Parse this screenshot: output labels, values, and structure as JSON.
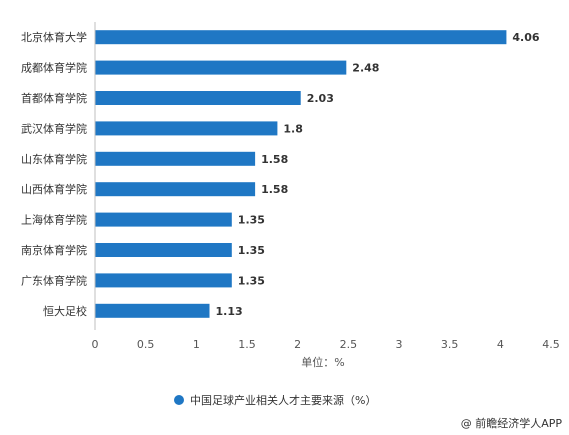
{
  "chart_data": {
    "type": "bar",
    "orientation": "horizontal",
    "categories": [
      "北京体育大学",
      "成都体育学院",
      "首都体育学院",
      "武汉体育学院",
      "山东体育学院",
      "山西体育学院",
      "上海体育学院",
      "南京体育学院",
      "广东体育学院",
      "恒大足校"
    ],
    "values": [
      4.06,
      2.48,
      2.03,
      1.8,
      1.58,
      1.58,
      1.35,
      1.35,
      1.35,
      1.13
    ],
    "value_labels": [
      "4.06",
      "2.48",
      "2.03",
      "1.8",
      "1.58",
      "1.58",
      "1.35",
      "1.35",
      "1.35",
      "1.13"
    ],
    "xlim": [
      0,
      4.5
    ],
    "xticks": [
      "0",
      "0.5",
      "1",
      "1.5",
      "2",
      "2.5",
      "3",
      "3.5",
      "4",
      "4.5"
    ],
    "xlabel": "单位：%",
    "legend": {
      "position": "bottom",
      "label": "中国足球产业相关人才主要来源（%）"
    },
    "grid": false,
    "colors": {
      "bar": "#1f77c4"
    },
    "source": "@ 前瞻经济学人APP"
  }
}
